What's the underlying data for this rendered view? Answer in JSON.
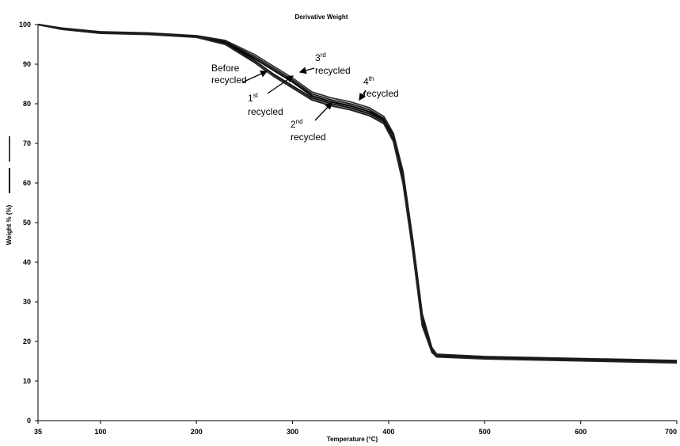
{
  "chart_data": {
    "type": "line",
    "title": "Derivative Weight",
    "xlabel": "Temperature (°C)",
    "ylabel": "Weight % (%)",
    "xlim": [
      35,
      700
    ],
    "ylim": [
      0,
      100
    ],
    "x_ticks": [
      "35",
      "100",
      "200",
      "300",
      "400",
      "500",
      "600",
      "700"
    ],
    "y_ticks": [
      "0",
      "10",
      "20",
      "30",
      "40",
      "50",
      "60",
      "70",
      "80",
      "90",
      "100"
    ],
    "grid": false,
    "series": [
      {
        "name": "Before recycled",
        "x": [
          35,
          60,
          100,
          150,
          200,
          230,
          260,
          280,
          300,
          320,
          340,
          360,
          380,
          395,
          405,
          415,
          425,
          435,
          445,
          450,
          500,
          600,
          700
        ],
        "y": [
          100,
          99,
          98,
          97.7,
          97,
          95.5,
          91.5,
          88.5,
          85.5,
          82,
          80.5,
          79.5,
          78,
          76,
          72,
          62,
          45,
          26,
          18,
          16.5,
          16,
          15.5,
          15
        ]
      },
      {
        "name": "1st recycled",
        "x": [
          35,
          60,
          100,
          150,
          200,
          230,
          260,
          280,
          300,
          320,
          340,
          360,
          380,
          395,
          405,
          415,
          425,
          435,
          445,
          450,
          500,
          600,
          700
        ],
        "y": [
          100,
          99,
          98,
          97.7,
          97,
          95.2,
          91,
          87.5,
          84.5,
          81.5,
          80,
          79,
          77.5,
          75.5,
          71,
          61,
          44,
          25,
          17.5,
          16.3,
          15.8,
          15.3,
          14.8
        ]
      },
      {
        "name": "2nd recycled",
        "x": [
          35,
          60,
          100,
          150,
          200,
          230,
          260,
          280,
          300,
          320,
          340,
          360,
          380,
          395,
          405,
          415,
          425,
          435,
          445,
          450,
          500,
          600,
          700
        ],
        "y": [
          100,
          98.8,
          97.8,
          97.5,
          96.8,
          95,
          90.5,
          87,
          84,
          81,
          79.5,
          78.5,
          77,
          75,
          70.5,
          60,
          43,
          24,
          17.3,
          16.1,
          15.6,
          15.1,
          14.6
        ]
      },
      {
        "name": "3rd recycled",
        "x": [
          35,
          60,
          100,
          150,
          200,
          230,
          260,
          280,
          300,
          320,
          340,
          360,
          380,
          395,
          405,
          415,
          425,
          435,
          445,
          450,
          500,
          600,
          700
        ],
        "y": [
          100,
          99.1,
          98.2,
          97.9,
          97.2,
          96,
          92.5,
          89.5,
          86.5,
          83,
          81.5,
          80.5,
          79,
          76.8,
          72.5,
          63,
          46,
          27,
          18.5,
          16.8,
          16.2,
          15.7,
          15.2
        ]
      },
      {
        "name": "4th recycled",
        "x": [
          35,
          60,
          100,
          150,
          200,
          230,
          260,
          280,
          300,
          320,
          340,
          360,
          380,
          395,
          405,
          415,
          425,
          435,
          445,
          450,
          500,
          600,
          700
        ],
        "y": [
          100,
          99.1,
          98.1,
          97.8,
          97.1,
          95.8,
          92,
          89,
          86,
          82.5,
          81,
          80,
          78.5,
          76.3,
          72.2,
          62.5,
          45.5,
          26.5,
          18.2,
          16.6,
          16.1,
          15.6,
          15.1
        ]
      }
    ],
    "annotations": [
      {
        "id": "before",
        "lines": [
          "Before",
          "recycled"
        ]
      },
      {
        "id": "first",
        "base": "1",
        "sup": "st",
        "line2": "recycled"
      },
      {
        "id": "second",
        "base": "2",
        "sup": "nd",
        "line2": "recycled"
      },
      {
        "id": "third",
        "base": "3",
        "sup": "rd",
        "line2": "recycled"
      },
      {
        "id": "fourth",
        "base": "4",
        "sup": "th",
        "line2": "recycled"
      }
    ]
  }
}
